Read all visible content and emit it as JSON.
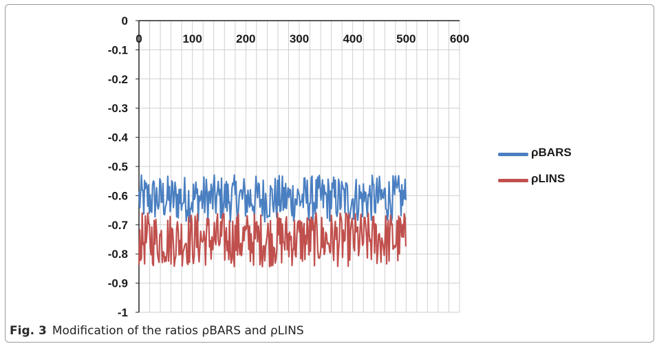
{
  "chart_data": {
    "type": "line",
    "x_ticks": [
      0,
      100,
      200,
      300,
      400,
      500,
      600
    ],
    "y_ticks": [
      0,
      -0.1,
      -0.2,
      -0.3,
      -0.4,
      -0.5,
      -0.6,
      -0.7,
      -0.8,
      -0.9,
      -1
    ],
    "x_tick_labels": [
      "0",
      "100",
      "200",
      "300",
      "400",
      "500",
      "600"
    ],
    "y_tick_labels": [
      "0",
      "-0.1",
      "-0.2",
      "-0.3",
      "-0.4",
      "-0.5",
      "-0.6",
      "-0.7",
      "-0.8",
      "-0.9",
      "-1"
    ],
    "xlim": [
      0,
      600
    ],
    "ylim": [
      -1,
      0
    ],
    "grid": true,
    "legend_position": "right",
    "series": [
      {
        "name": "ρBARS",
        "color": "#4a7fc1",
        "x_range": [
          0,
          500
        ],
        "pattern": "noisy oscillation",
        "values_min": -0.7,
        "values_max": -0.52,
        "values_mean": -0.61
      },
      {
        "name": "ρLINS",
        "color": "#c0504d",
        "x_range": [
          0,
          500
        ],
        "pattern": "noisy oscillation",
        "values_min": -0.87,
        "values_max": -0.66,
        "values_mean": -0.75
      }
    ]
  },
  "caption": {
    "label": "Fig. 3",
    "text": "Modification of the ratios ρBARS and ρLINS"
  }
}
